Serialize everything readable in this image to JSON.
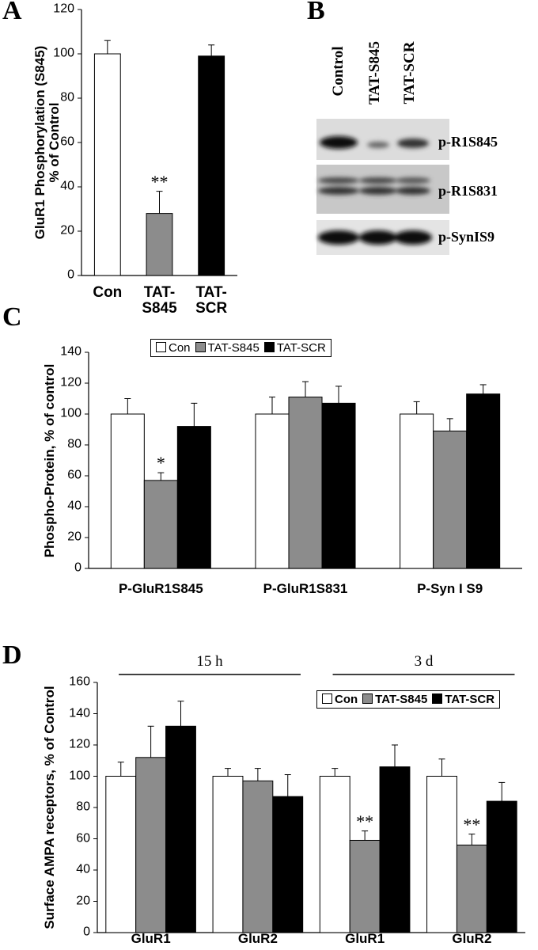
{
  "chart_data": [
    {
      "type": "bar",
      "panel": "A",
      "ylabel": "GluR1 Phosphorylation (S845)\n% of Control",
      "categories": [
        "Con",
        "TAT-\nS845",
        "TAT-\nSCR"
      ],
      "values": [
        100,
        28,
        99
      ],
      "errors": [
        6,
        10,
        5
      ],
      "colors": [
        "#ffffff",
        "#8c8c8c",
        "#000000"
      ],
      "significance": [
        null,
        "**",
        null
      ],
      "ylim": [
        0,
        120
      ],
      "yticks": [
        0,
        20,
        40,
        60,
        80,
        100,
        120
      ]
    },
    {
      "type": "bar",
      "panel": "C",
      "ylabel": "Phospho-Protein, % of control",
      "categories": [
        "P-GluR1S845",
        "P-GluR1S831",
        "P-Syn I S9"
      ],
      "series": [
        {
          "name": "Con",
          "color": "#ffffff",
          "values": [
            100,
            100,
            100
          ],
          "errors": [
            10,
            11,
            8
          ],
          "significance": [
            null,
            null,
            null
          ]
        },
        {
          "name": "TAT-S845",
          "color": "#8c8c8c",
          "values": [
            57,
            111,
            89
          ],
          "errors": [
            5,
            10,
            8
          ],
          "significance": [
            "*",
            null,
            null
          ]
        },
        {
          "name": "TAT-SCR",
          "color": "#000000",
          "values": [
            92,
            107,
            113
          ],
          "errors": [
            15,
            11,
            6
          ],
          "significance": [
            null,
            null,
            null
          ]
        }
      ],
      "legend": "top",
      "ylim": [
        0,
        140
      ],
      "yticks": [
        0,
        20,
        40,
        60,
        80,
        100,
        120,
        140
      ]
    },
    {
      "type": "bar",
      "panel": "D",
      "ylabel": "Surface AMPA receptors, % of Control",
      "categories": [
        "GluR1",
        "GluR2",
        "GluR1",
        "GluR2"
      ],
      "groups": [
        {
          "label": "15 h",
          "span": 2
        },
        {
          "label": "3 d",
          "span": 2
        }
      ],
      "series": [
        {
          "name": "Con",
          "color": "#ffffff",
          "values": [
            100,
            100,
            100,
            100
          ],
          "errors": [
            9,
            5,
            5,
            11
          ],
          "significance": [
            null,
            null,
            null,
            null
          ]
        },
        {
          "name": "TAT-S845",
          "color": "#8c8c8c",
          "values": [
            112,
            97,
            59,
            56
          ],
          "errors": [
            20,
            8,
            6,
            7
          ],
          "significance": [
            null,
            null,
            "**",
            "**"
          ]
        },
        {
          "name": "TAT-SCR",
          "color": "#000000",
          "values": [
            132,
            87,
            106,
            84
          ],
          "errors": [
            16,
            14,
            14,
            12
          ],
          "significance": [
            null,
            null,
            null,
            null
          ]
        }
      ],
      "legend": "top right",
      "ylim": [
        0,
        160
      ],
      "yticks": [
        0,
        20,
        40,
        60,
        80,
        100,
        120,
        140,
        160
      ]
    }
  ],
  "blot": {
    "panel": "B",
    "lanes": [
      "Control",
      "TAT-S845",
      "TAT-SCR"
    ],
    "bands": [
      "p-R1S845",
      "p-R1S831",
      "p-SynIS9"
    ]
  }
}
